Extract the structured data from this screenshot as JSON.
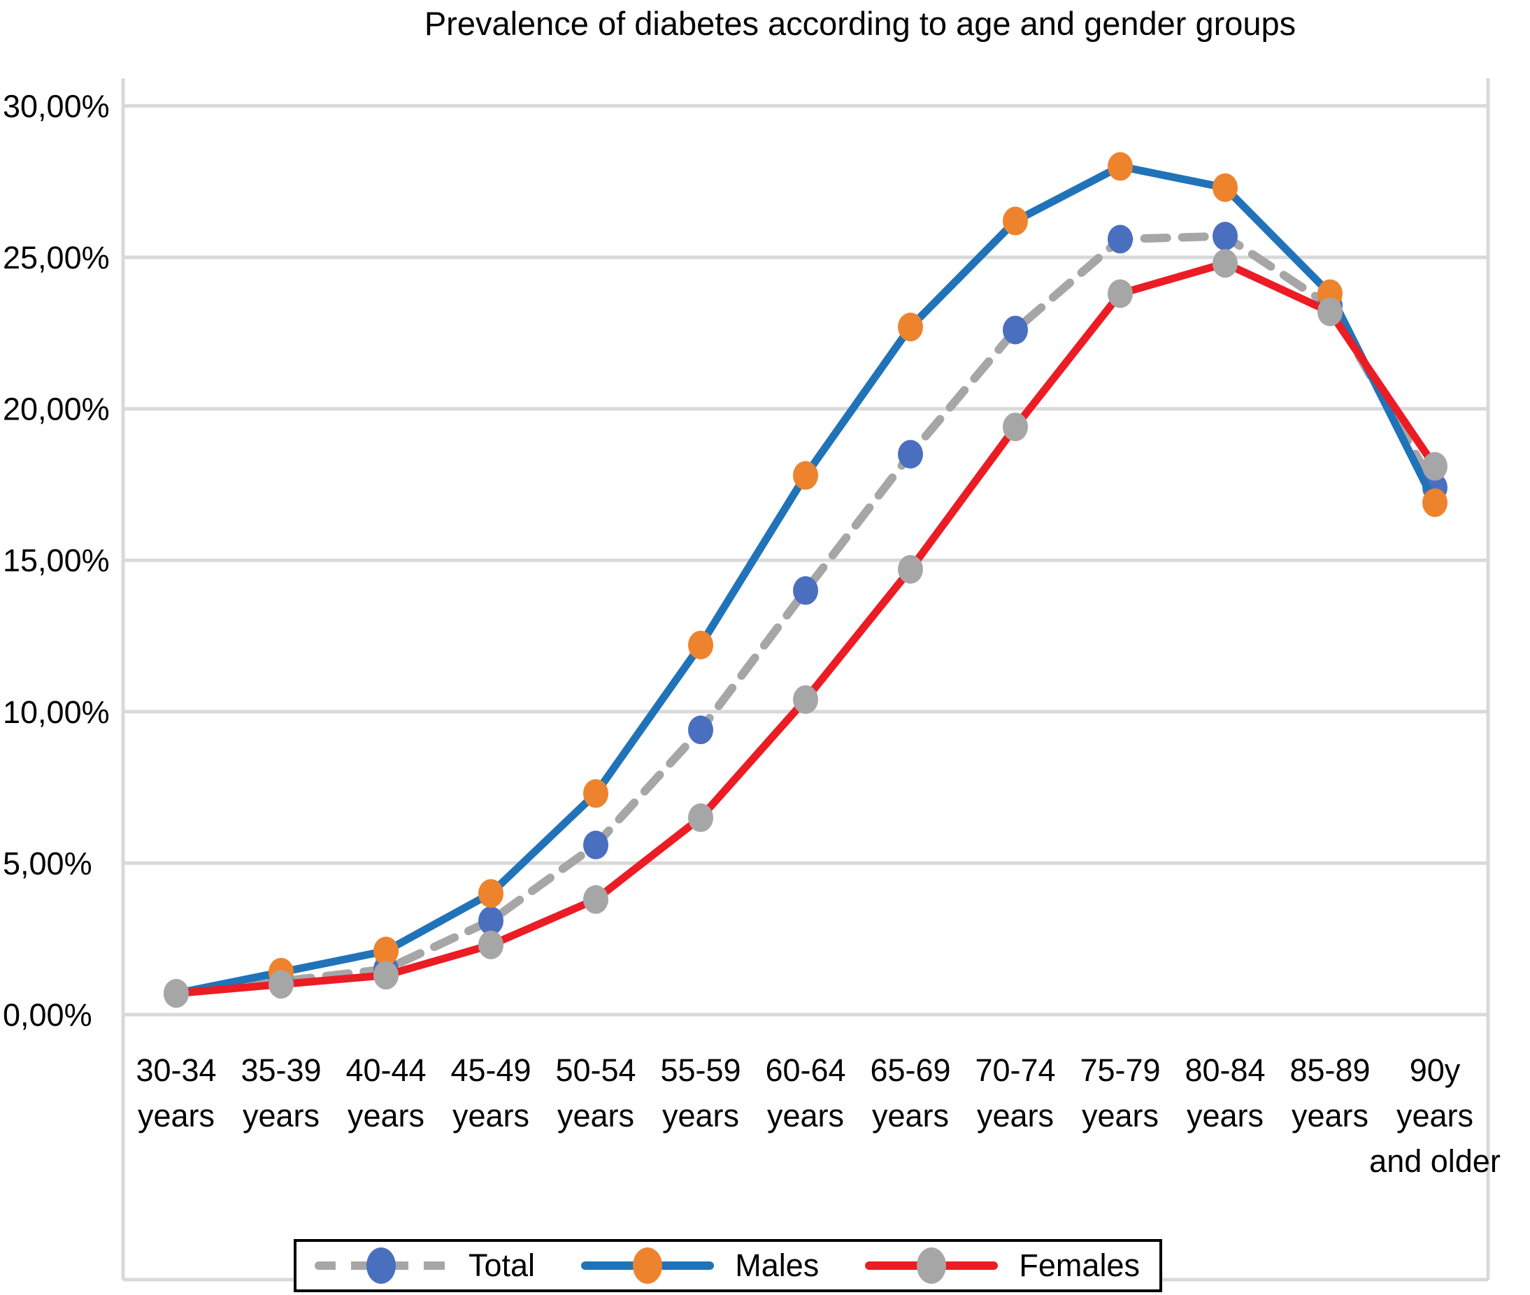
{
  "chart_data": {
    "type": "line",
    "title": "Prevalence of diabetes according to age and gender groups",
    "categories": [
      "30-34 years",
      "35-39 years",
      "40-44 years",
      "45-49 years",
      "50-54 years",
      "55-59 years",
      "60-64 years",
      "65-69 years",
      "70-74 years",
      "75-79 years",
      "80-84 years",
      "85-89 years",
      "90y years and older"
    ],
    "x_tick_lines": [
      [
        "30-34",
        "years"
      ],
      [
        "35-39",
        "years"
      ],
      [
        "40-44",
        "years"
      ],
      [
        "45-49",
        "years"
      ],
      [
        "50-54",
        "years"
      ],
      [
        "55-59",
        "years"
      ],
      [
        "60-64",
        "years"
      ],
      [
        "65-69",
        "years"
      ],
      [
        "70-74",
        "years"
      ],
      [
        "75-79",
        "years"
      ],
      [
        "80-84",
        "years"
      ],
      [
        "85-89",
        "years"
      ],
      [
        "90y",
        "years",
        "and older"
      ]
    ],
    "y_axis": {
      "min": 0,
      "max": 30,
      "step": 5,
      "tick_labels": [
        "0,00%",
        "5,00%",
        "10,00%",
        "15,00%",
        "20,00%",
        "25,00%",
        "30,00%"
      ],
      "unit": "percent"
    },
    "grid": true,
    "legend_position": "bottom",
    "series": [
      {
        "name": "Total",
        "style": "dashed",
        "line_color": "#A6A6A6",
        "marker_color": "#4A6FBF",
        "values": [
          0.7,
          1.1,
          1.5,
          3.1,
          5.6,
          9.4,
          14.0,
          18.5,
          22.6,
          25.6,
          25.7,
          23.4,
          17.4
        ]
      },
      {
        "name": "Males",
        "style": "solid",
        "line_color": "#2073B8",
        "marker_color": "#EE832D",
        "values": [
          0.7,
          1.4,
          2.1,
          4.0,
          7.3,
          12.2,
          17.8,
          22.7,
          26.2,
          28.0,
          27.3,
          23.8,
          16.9
        ]
      },
      {
        "name": "Females",
        "style": "solid",
        "line_color": "#EC1C24",
        "marker_color": "#A6A6A6",
        "values": [
          0.7,
          1.0,
          1.3,
          2.3,
          3.8,
          6.5,
          10.4,
          14.7,
          19.4,
          23.8,
          24.8,
          23.2,
          18.1
        ]
      }
    ],
    "colors": {
      "gridline": "#D9D9D9",
      "plot_border": "#D9D9D9",
      "text": "#000000",
      "legend_border": "#000000"
    }
  }
}
